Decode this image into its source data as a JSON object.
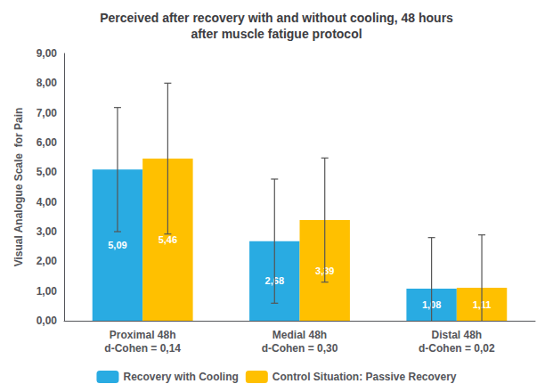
{
  "chart_data": {
    "type": "bar",
    "title": "Perceived after recovery with and without cooling, 48 hours\nafter muscle fatigue protocol",
    "ylabel": "Visual Analogue Scale  for Pain",
    "categories": [
      "Proximal 48h\nd-Cohen = 0,14",
      "Medial 48h\nd-Cohen = 0,30",
      "Distal 48h\nd-Cohen = 0,02"
    ],
    "series": [
      {
        "name": "Recovery with Cooling",
        "color": "#29ABE2",
        "values": [
          5.09,
          2.68,
          1.08
        ],
        "errors": [
          2.09,
          2.09,
          1.72
        ],
        "value_labels": [
          "5,09",
          "2,68",
          "1,08"
        ]
      },
      {
        "name": "Control Situation: Passive Recovery",
        "color": "#FFC000",
        "values": [
          5.46,
          3.39,
          1.11
        ],
        "errors": [
          2.54,
          2.09,
          1.78
        ],
        "value_labels": [
          "5,46",
          "3,39",
          "1,11"
        ]
      }
    ],
    "ylim": [
      0,
      9.0
    ],
    "yticks": [
      {
        "value": 0.0,
        "label": "0,00"
      },
      {
        "value": 1.0,
        "label": "1,00"
      },
      {
        "value": 2.0,
        "label": "2,00"
      },
      {
        "value": 3.0,
        "label": "3,00"
      },
      {
        "value": 4.0,
        "label": "4,00"
      },
      {
        "value": 5.0,
        "label": "5,00"
      },
      {
        "value": 6.0,
        "label": "6,00"
      },
      {
        "value": 7.0,
        "label": "7,00"
      },
      {
        "value": 8.0,
        "label": "8,00"
      },
      {
        "value": 9.0,
        "label": "9,00"
      }
    ],
    "grid": false,
    "legend": "bottom",
    "data_labels": true
  }
}
